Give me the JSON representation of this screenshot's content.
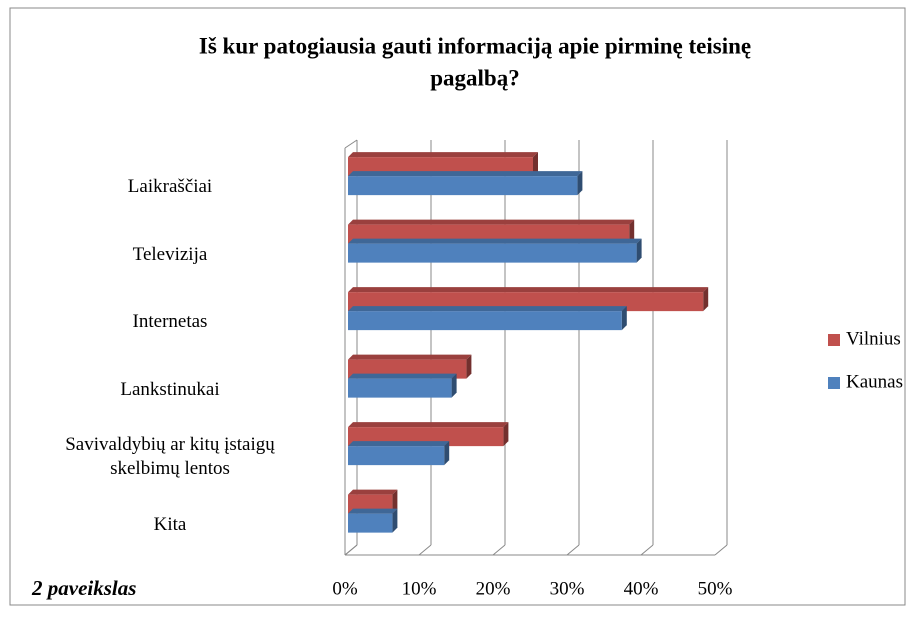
{
  "chart_data": {
    "type": "bar3d_horizontal",
    "title": "Iš kur patogiausia gauti informaciją apie pirminę teisinę",
    "title_line2": "pagalbą?",
    "caption": "2 paveikslas",
    "categories": [
      "Laikraščiai",
      "Televizija",
      "Internetas",
      "Lankstinukai",
      "Savivaldybių ar kitų įstaigų\nskelbimų lentos",
      "Kita"
    ],
    "series": [
      {
        "name": "Vilnius",
        "color": "#c0504d",
        "values": [
          25,
          38,
          48,
          16,
          21,
          6
        ]
      },
      {
        "name": "Kaunas",
        "color": "#4f81bd",
        "values": [
          31,
          39,
          37,
          14,
          13,
          6
        ]
      }
    ],
    "xlim": [
      0,
      50
    ],
    "xticks": [
      {
        "value": 0,
        "label": "0%"
      },
      {
        "value": 10,
        "label": "10%"
      },
      {
        "value": 20,
        "label": "20%"
      },
      {
        "value": 30,
        "label": "30%"
      },
      {
        "value": 40,
        "label": "40%"
      },
      {
        "value": 50,
        "label": "50%"
      }
    ],
    "grid": true
  }
}
